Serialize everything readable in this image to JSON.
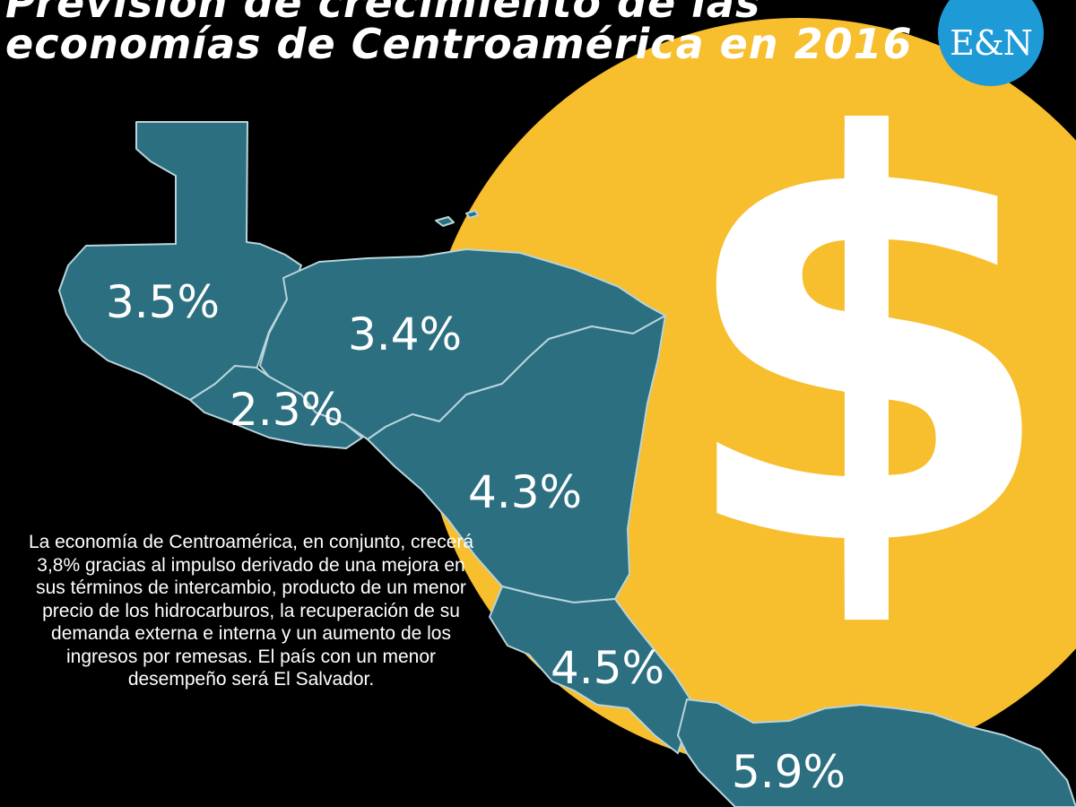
{
  "title": {
    "line1": "Previsión de crecimiento de las",
    "line2": "economías de Centroamérica en 2016"
  },
  "logo": {
    "text": "E&N"
  },
  "icons": {
    "dollar": "$"
  },
  "colors": {
    "background": "#000000",
    "coin": "#f7be2d",
    "land": "#2b6f80",
    "borders": "#b8d4dc",
    "logo": "#1e9ad6",
    "text": "#ffffff"
  },
  "map": {
    "countries": [
      {
        "value": "3.5%"
      },
      {
        "value": "3.4%"
      },
      {
        "value": "2.3%"
      },
      {
        "value": "4.3%"
      },
      {
        "value": "4.5%"
      },
      {
        "value": "5.9%"
      }
    ]
  },
  "caption": "La economía de Centroamérica, en conjunto, crecerá 3,8% gracias al impulso derivado de una  mejora en sus términos de intercambio, producto de un menor precio de los hidrocarburos, la recuperación de su demanda externa e interna  y un aumento de los ingresos por remesas. El país con un menor desempeño será El Salvador."
}
